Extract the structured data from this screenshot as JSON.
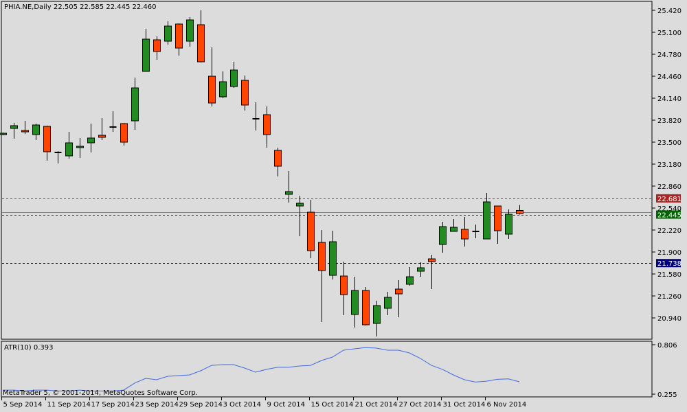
{
  "header": {
    "symbol": "PHIA.NE,Daily",
    "ohlc": "22.505 22.585 22.445 22.460"
  },
  "footer": {
    "copyright": "MetaTrader 5, © 2001-2014, MetaQuotes Software Corp."
  },
  "colors": {
    "background": "#dcdcdc",
    "bull": "#228b22",
    "bear": "#ff4500",
    "atr_line": "#4169e1",
    "red_line": "#d22",
    "green_line": "#007000",
    "blue_line": "#000080"
  },
  "chart_data": [
    {
      "type": "candlestick",
      "title": "PHIA.NE,Daily",
      "ylim": [
        20.64,
        25.52
      ],
      "y_ticks": [
        "25.420",
        "25.100",
        "24.780",
        "24.460",
        "24.140",
        "23.820",
        "23.500",
        "23.180",
        "22.860",
        "22.540",
        "22.220",
        "21.900",
        "21.580",
        "21.260",
        "20.940"
      ],
      "x_ticks": [
        {
          "label": "5 Sep 2014",
          "index": 0
        },
        {
          "label": "11 Sep 2014",
          "index": 4
        },
        {
          "label": "17 Sep 2014",
          "index": 8
        },
        {
          "label": "23 Sep 2014",
          "index": 12
        },
        {
          "label": "29 Sep 2014",
          "index": 16
        },
        {
          "label": "3 Oct 2014",
          "index": 20
        },
        {
          "label": "9 Oct 2014",
          "index": 24
        },
        {
          "label": "15 Oct 2014",
          "index": 28
        },
        {
          "label": "21 Oct 2014",
          "index": 32
        },
        {
          "label": "27 Oct 2014",
          "index": 36
        },
        {
          "label": "31 Oct 2014",
          "index": 40
        },
        {
          "label": "6 Nov 2014",
          "index": 44
        }
      ],
      "ohlc": [
        [
          23.61,
          23.64,
          23.6,
          23.63
        ],
        [
          23.7,
          23.78,
          23.55,
          23.74
        ],
        [
          23.67,
          23.81,
          23.62,
          23.65
        ],
        [
          23.61,
          23.77,
          23.53,
          23.75
        ],
        [
          23.73,
          23.74,
          23.23,
          23.36
        ],
        [
          23.35,
          23.37,
          23.19,
          23.35
        ],
        [
          23.3,
          23.65,
          23.26,
          23.49
        ],
        [
          23.42,
          23.56,
          23.27,
          23.44
        ],
        [
          23.49,
          23.77,
          23.35,
          23.56
        ],
        [
          23.6,
          23.85,
          23.53,
          23.57
        ],
        [
          23.72,
          23.95,
          23.65,
          23.72
        ],
        [
          23.77,
          23.78,
          23.45,
          23.5
        ],
        [
          23.81,
          24.44,
          23.68,
          24.29
        ],
        [
          24.53,
          25.15,
          24.53,
          25.0
        ],
        [
          24.99,
          25.04,
          24.7,
          24.82
        ],
        [
          24.97,
          25.26,
          24.92,
          25.19
        ],
        [
          25.22,
          25.23,
          24.76,
          24.87
        ],
        [
          24.97,
          25.32,
          24.89,
          25.28
        ],
        [
          25.21,
          25.42,
          24.66,
          24.67
        ],
        [
          24.46,
          24.88,
          24.02,
          24.07
        ],
        [
          24.16,
          24.53,
          24.14,
          24.38
        ],
        [
          24.31,
          24.67,
          24.29,
          24.55
        ],
        [
          24.4,
          24.47,
          23.96,
          24.04
        ],
        [
          23.84,
          24.08,
          23.67,
          23.84
        ],
        [
          23.9,
          24.02,
          23.42,
          23.61
        ],
        [
          23.38,
          23.42,
          23.0,
          23.15
        ],
        [
          22.74,
          23.08,
          22.62,
          22.78
        ],
        [
          22.57,
          22.72,
          22.13,
          22.61
        ],
        [
          22.48,
          22.66,
          21.81,
          21.92
        ],
        [
          22.04,
          22.22,
          20.88,
          21.63
        ],
        [
          21.56,
          22.21,
          21.5,
          22.05
        ],
        [
          21.55,
          21.76,
          20.98,
          21.28
        ],
        [
          20.99,
          21.54,
          20.8,
          21.34
        ],
        [
          21.34,
          21.39,
          20.83,
          20.84
        ],
        [
          20.86,
          21.19,
          20.67,
          21.12
        ],
        [
          21.08,
          21.32,
          20.98,
          21.24
        ],
        [
          21.36,
          21.49,
          20.95,
          21.29
        ],
        [
          21.43,
          21.68,
          21.41,
          21.54
        ],
        [
          21.62,
          21.75,
          21.54,
          21.67
        ],
        [
          21.8,
          21.86,
          21.36,
          21.76
        ],
        [
          22.01,
          22.34,
          21.89,
          22.27
        ],
        [
          22.2,
          22.38,
          22.2,
          22.26
        ],
        [
          22.23,
          22.41,
          21.98,
          22.09
        ],
        [
          22.2,
          22.3,
          22.1,
          22.2
        ],
        [
          22.09,
          22.76,
          22.09,
          22.63
        ],
        [
          22.57,
          22.57,
          22.02,
          22.21
        ],
        [
          22.16,
          22.52,
          22.09,
          22.45
        ],
        [
          22.505,
          22.585,
          22.445,
          22.46
        ]
      ],
      "levels": [
        {
          "value": 22.681,
          "label": "22.681",
          "style": "dashed",
          "color": "#d22",
          "tag": "#b22222"
        },
        {
          "value": 22.445,
          "label": "22.445",
          "style": "dashed",
          "color": "#007000",
          "tag": "#006400"
        },
        {
          "value": 21.738,
          "label": "21.738",
          "style": "dashed",
          "color": "#000080",
          "tag": "#000080"
        }
      ],
      "last_price_line": 22.46
    },
    {
      "type": "line",
      "title": "ATR(10) 0.393",
      "ylim": [
        0.255,
        0.806
      ],
      "y_ticks": [
        "0.806",
        "0.255"
      ],
      "values": [
        0.3,
        0.3,
        0.29,
        0.3,
        0.3,
        0.29,
        0.29,
        0.3,
        0.29,
        0.29,
        0.29,
        0.3,
        0.378,
        0.431,
        0.416,
        0.454,
        0.462,
        0.469,
        0.515,
        0.576,
        0.584,
        0.584,
        0.546,
        0.5,
        0.531,
        0.554,
        0.554,
        0.569,
        0.576,
        0.63,
        0.668,
        0.745,
        0.76,
        0.775,
        0.768,
        0.745,
        0.745,
        0.714,
        0.653,
        0.576,
        0.531,
        0.469,
        0.416,
        0.39,
        0.4,
        0.42,
        0.425,
        0.393
      ]
    }
  ]
}
